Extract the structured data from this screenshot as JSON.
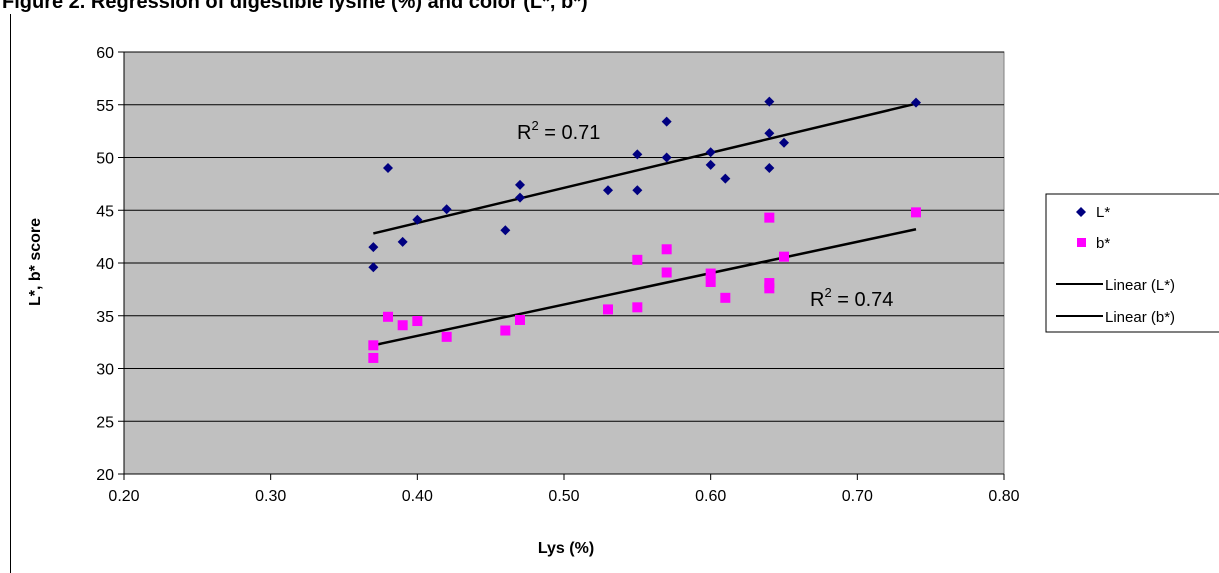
{
  "chart_data": {
    "type": "scatter",
    "title": "Figure 2. Regression of digestible lysine (%) and color (L*, b*)",
    "xlabel": "Lys (%)",
    "ylabel": "L*, b* score",
    "xlim": [
      0.2,
      0.8
    ],
    "ylim": [
      20,
      60
    ],
    "xticks": [
      "0.20",
      "0.30",
      "0.40",
      "0.50",
      "0.60",
      "0.70",
      "0.80"
    ],
    "yticks": [
      "20",
      "25",
      "30",
      "35",
      "40",
      "45",
      "50",
      "55",
      "60"
    ],
    "grid": "horizontal",
    "legend_position": "right",
    "series": [
      {
        "name": "L*",
        "marker": "diamond",
        "color": "#000080",
        "points": [
          [
            0.37,
            41.5
          ],
          [
            0.37,
            39.6
          ],
          [
            0.38,
            49.0
          ],
          [
            0.39,
            42.0
          ],
          [
            0.4,
            44.1
          ],
          [
            0.42,
            45.1
          ],
          [
            0.46,
            43.1
          ],
          [
            0.47,
            47.4
          ],
          [
            0.47,
            46.2
          ],
          [
            0.53,
            46.9
          ],
          [
            0.55,
            50.3
          ],
          [
            0.55,
            46.9
          ],
          [
            0.57,
            53.4
          ],
          [
            0.57,
            50.0
          ],
          [
            0.6,
            50.5
          ],
          [
            0.6,
            49.3
          ],
          [
            0.61,
            48.0
          ],
          [
            0.64,
            55.3
          ],
          [
            0.64,
            52.3
          ],
          [
            0.64,
            49.0
          ],
          [
            0.65,
            51.4
          ],
          [
            0.74,
            55.2
          ]
        ]
      },
      {
        "name": "b*",
        "marker": "square",
        "color": "#ff00ff",
        "points": [
          [
            0.37,
            32.2
          ],
          [
            0.37,
            31.0
          ],
          [
            0.38,
            34.9
          ],
          [
            0.39,
            34.1
          ],
          [
            0.4,
            34.5
          ],
          [
            0.42,
            33.0
          ],
          [
            0.46,
            33.6
          ],
          [
            0.47,
            34.6
          ],
          [
            0.53,
            35.6
          ],
          [
            0.55,
            40.3
          ],
          [
            0.55,
            35.8
          ],
          [
            0.57,
            41.3
          ],
          [
            0.57,
            39.1
          ],
          [
            0.6,
            39.0
          ],
          [
            0.6,
            38.2
          ],
          [
            0.61,
            36.7
          ],
          [
            0.64,
            44.3
          ],
          [
            0.64,
            38.1
          ],
          [
            0.64,
            37.6
          ],
          [
            0.65,
            40.6
          ],
          [
            0.74,
            44.8
          ]
        ]
      },
      {
        "name": "Linear (L*)",
        "type": "line",
        "color": "#000000",
        "points": [
          [
            0.37,
            42.8
          ],
          [
            0.74,
            55.1
          ]
        ],
        "r2_label": "R",
        "r2_sup": "2",
        "r2_value": " = 0.71"
      },
      {
        "name": "Linear (b*)",
        "type": "line",
        "color": "#000000",
        "points": [
          [
            0.37,
            32.2
          ],
          [
            0.74,
            43.2
          ]
        ],
        "r2_label": "R",
        "r2_sup": "2",
        "r2_value": " = 0.74"
      }
    ]
  },
  "colors": {
    "plot_background": "#c0c0c0",
    "gridline": "#000000",
    "l_star": "#000080",
    "b_star": "#ff00ff",
    "trendline": "#000000"
  }
}
